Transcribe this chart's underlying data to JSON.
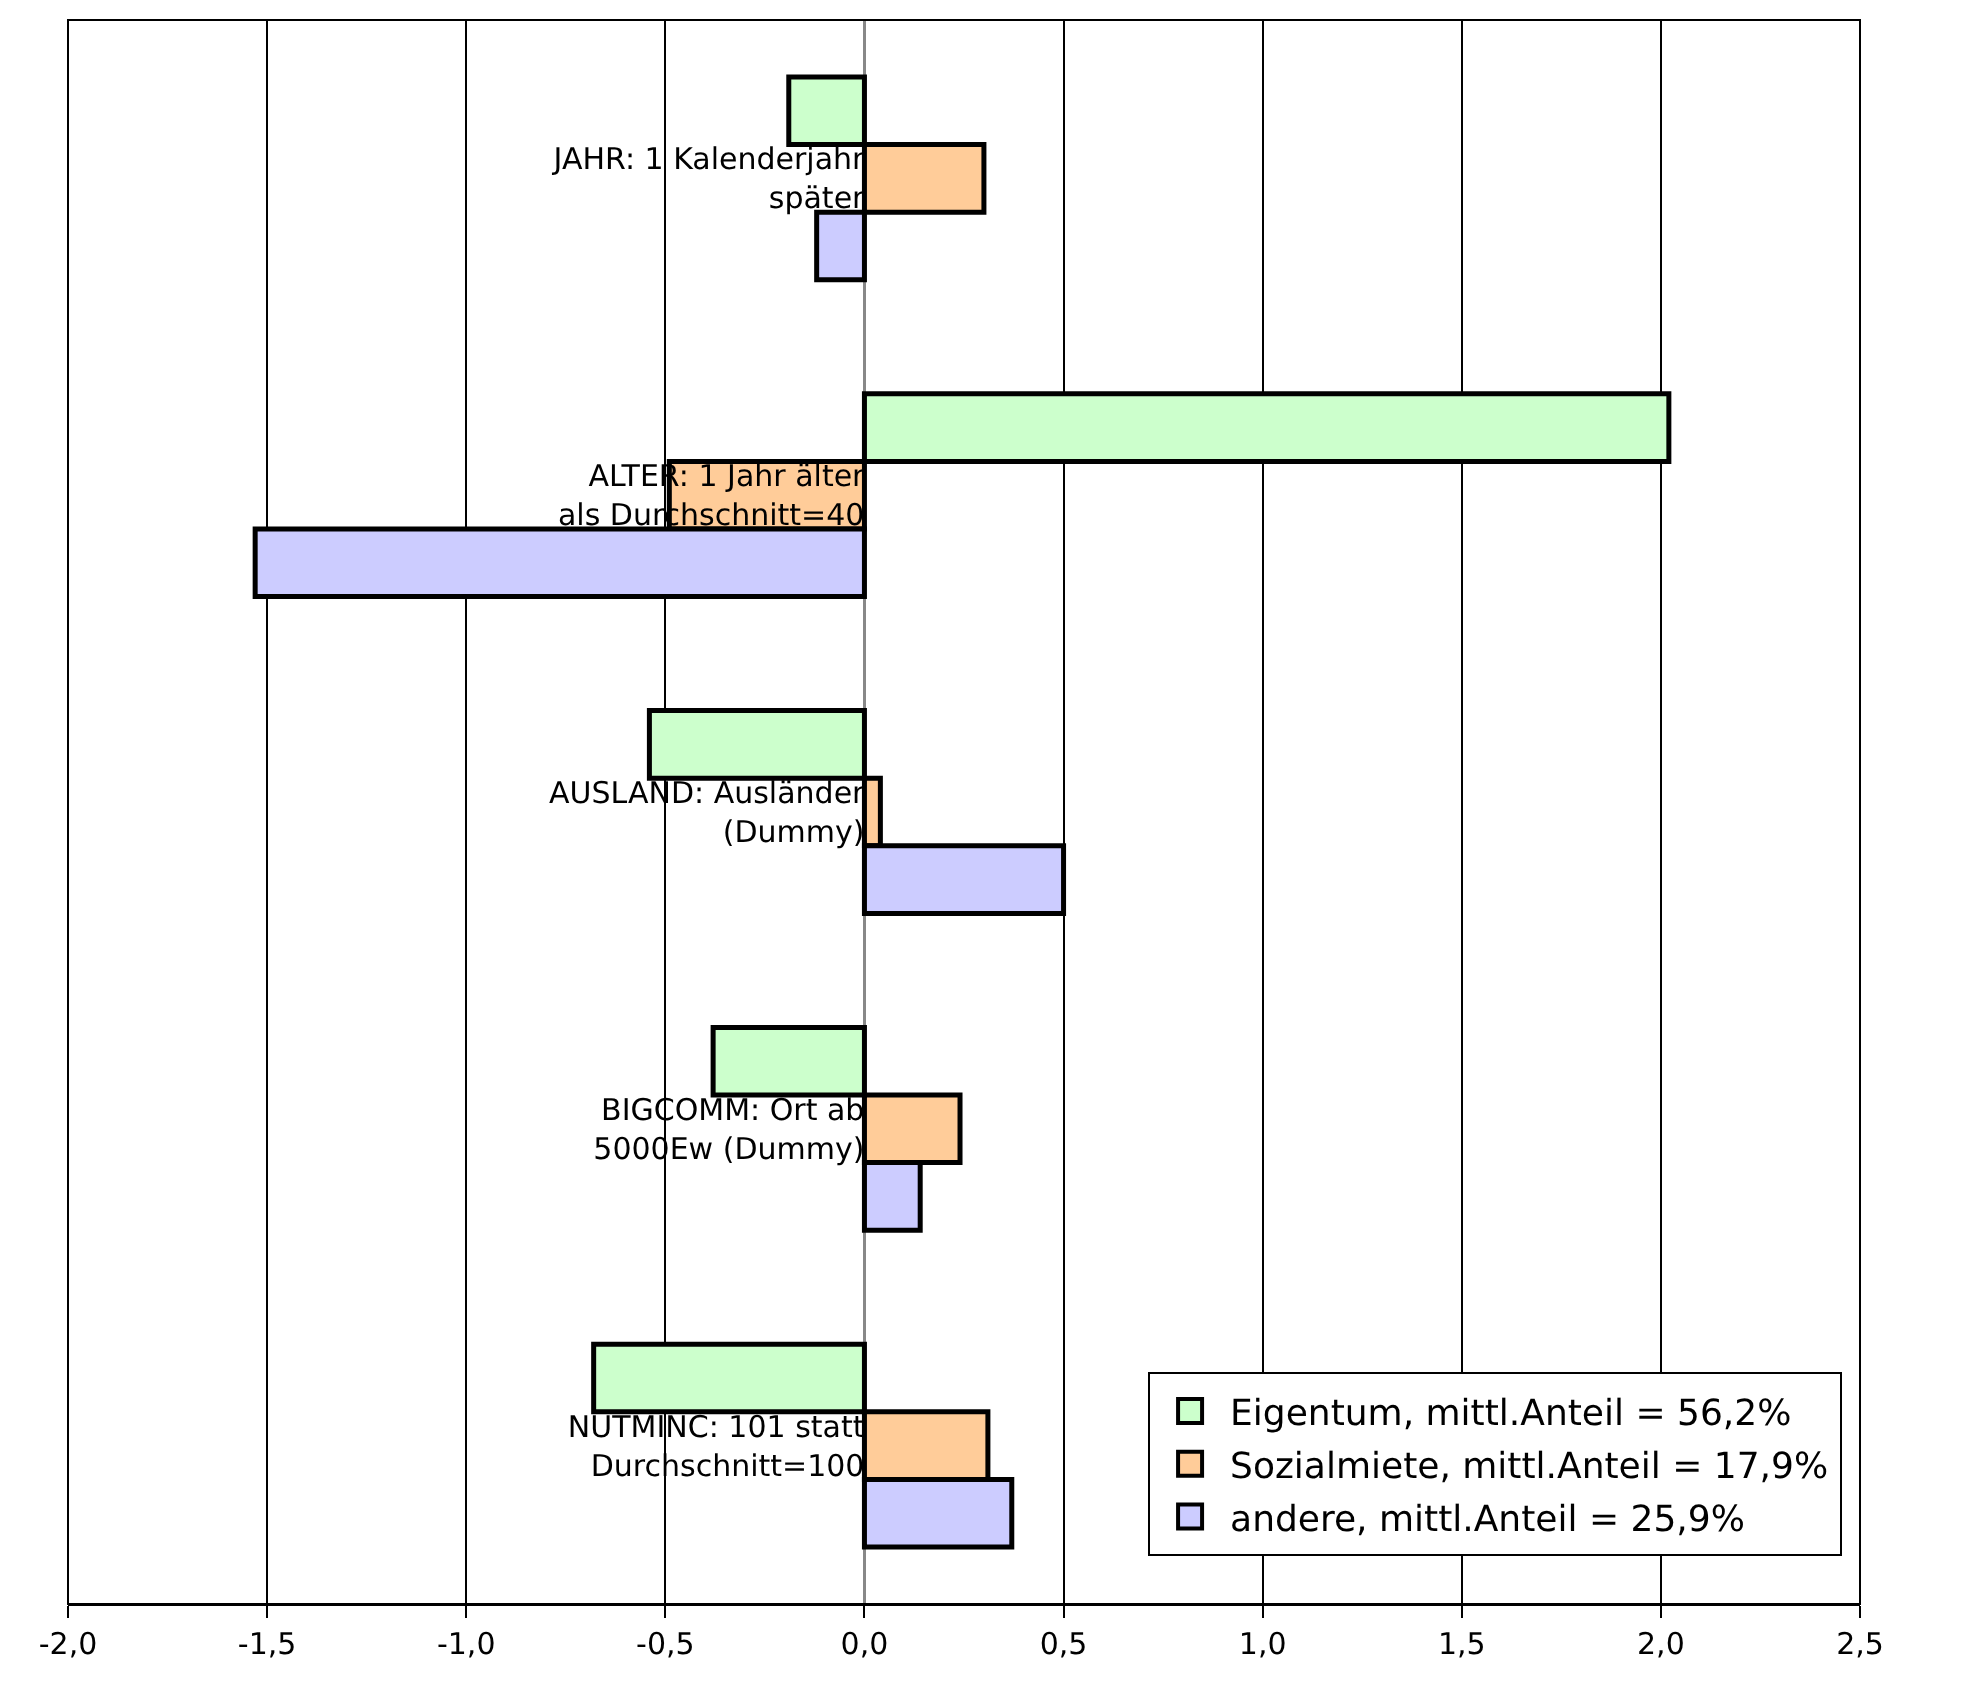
{
  "chart_data": {
    "type": "bar",
    "orientation": "horizontal",
    "categories": [
      "JAHR: 1 Kalenderjahr später",
      "ALTER: 1 Jahr älter als Durchschnitt=40",
      "AUSLAND: Ausländer (Dummy)",
      "BIGCOMM: Ort ab 5000Ew (Dummy)",
      "NUTMINC: 101 statt Durchschnitt=100"
    ],
    "series": [
      {
        "name": "Eigentum, mittl.Anteil = 56,2%",
        "color": "#ccffcc",
        "values": [
          -0.19,
          2.02,
          -0.54,
          -0.38,
          -0.68
        ]
      },
      {
        "name": "Sozialmiete, mittl.Anteil = 17,9%",
        "color": "#ffcc99",
        "values": [
          0.3,
          -0.49,
          0.04,
          0.24,
          0.31
        ]
      },
      {
        "name": "andere, mittl.Anteil = 25,9%",
        "color": "#ccccff",
        "values": [
          -0.12,
          -1.53,
          0.5,
          0.14,
          0.37
        ]
      }
    ],
    "xlim": [
      -2.0,
      2.5
    ],
    "xticks": [
      {
        "value": -2.0,
        "label": "-2,0"
      },
      {
        "value": -1.5,
        "label": "-1,5"
      },
      {
        "value": -1.0,
        "label": "-1,0"
      },
      {
        "value": -0.5,
        "label": "-0,5"
      },
      {
        "value": 0.0,
        "label": "0,0"
      },
      {
        "value": 0.5,
        "label": "0,5"
      },
      {
        "value": 1.0,
        "label": "1,0"
      },
      {
        "value": 1.5,
        "label": "1,5"
      },
      {
        "value": 2.0,
        "label": "2,0"
      },
      {
        "value": 2.5,
        "label": "2,5"
      }
    ],
    "grid": "x",
    "legend": "bottom right"
  }
}
